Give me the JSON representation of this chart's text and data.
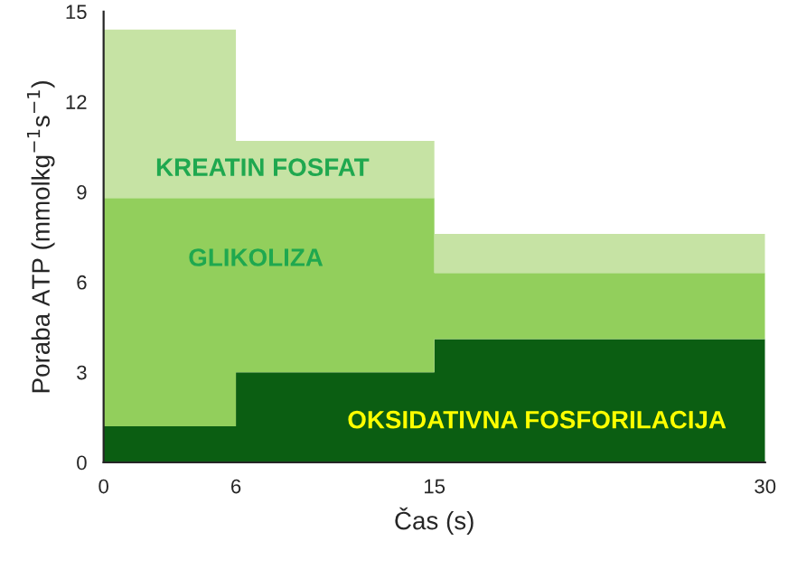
{
  "chart_data": {
    "type": "area",
    "stacked": true,
    "xlabel": "Čas (s)",
    "ylabel": "Poraba ATP (mmolkg$^{−1}$s$^{−1}$)",
    "x": [
      0,
      6,
      6,
      15,
      15,
      30
    ],
    "series": [
      {
        "name": "OKSIDATIVNA FOSFORILACIJA",
        "color": "#0b5e12",
        "values": [
          1.2,
          1.2,
          3.0,
          3.0,
          4.1,
          4.1
        ]
      },
      {
        "name": "GLIKOLIZA",
        "color": "#92cf5c",
        "values": [
          7.6,
          7.6,
          5.8,
          5.8,
          2.2,
          2.2
        ]
      },
      {
        "name": "KREATIN FOSFAT",
        "color": "#c6e3a4",
        "values": [
          5.6,
          5.6,
          1.9,
          1.9,
          1.3,
          1.3
        ]
      }
    ],
    "xlim": [
      0,
      30
    ],
    "ylim": [
      0,
      15
    ],
    "xticks": [
      0,
      6,
      15,
      30
    ],
    "yticks": [
      0,
      3,
      6,
      9,
      12,
      15
    ],
    "grid": false,
    "legend": false
  }
}
